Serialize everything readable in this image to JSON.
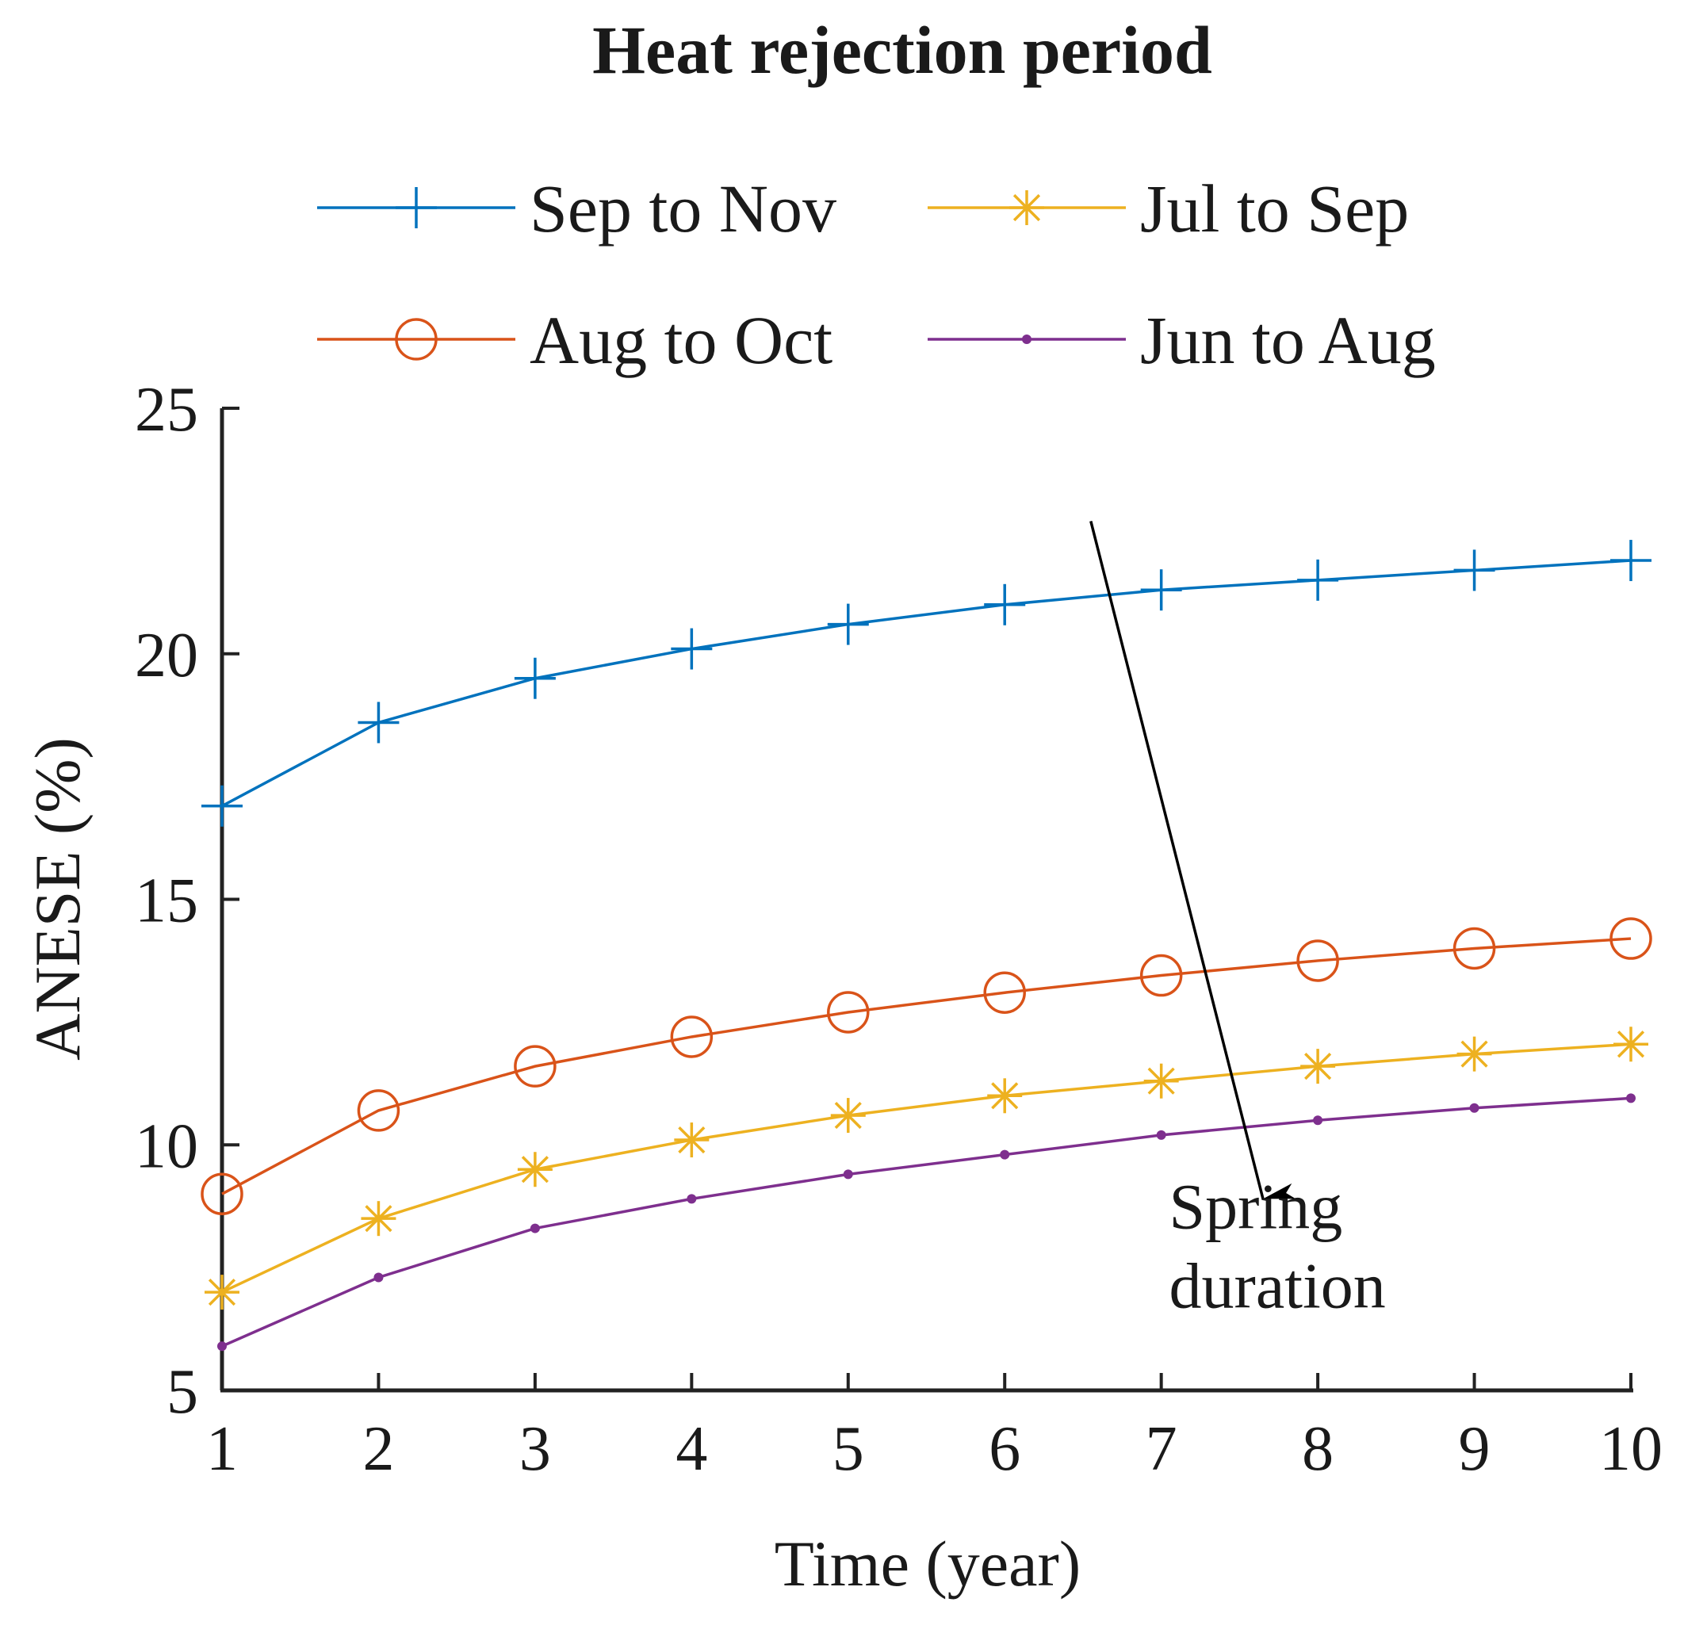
{
  "chart_data": {
    "type": "line",
    "title": "Heat rejection period",
    "xlabel": "Time (year)",
    "ylabel": "ANESE (%)",
    "x": [
      1,
      2,
      3,
      4,
      5,
      6,
      7,
      8,
      9,
      10
    ],
    "xlim": [
      1,
      10
    ],
    "ylim": [
      5,
      25
    ],
    "xticks": [
      1,
      2,
      3,
      4,
      5,
      6,
      7,
      8,
      9,
      10
    ],
    "yticks": [
      5,
      10,
      15,
      20,
      25
    ],
    "grid": false,
    "legend_position": "top",
    "series": [
      {
        "name": "Sep to Nov",
        "color": "#0072BD",
        "marker": "plus",
        "values": [
          16.9,
          18.6,
          19.5,
          20.1,
          20.6,
          21.0,
          21.3,
          21.5,
          21.7,
          21.9
        ]
      },
      {
        "name": "Jul to Sep",
        "color": "#EDB120",
        "marker": "asterisk",
        "values": [
          7.0,
          8.5,
          9.5,
          10.1,
          10.6,
          11.0,
          11.3,
          11.6,
          11.85,
          12.05
        ]
      },
      {
        "name": "Aug to Oct",
        "color": "#D95319",
        "marker": "circle",
        "values": [
          9.0,
          10.7,
          11.6,
          12.2,
          12.7,
          13.1,
          13.45,
          13.75,
          14.0,
          14.2
        ]
      },
      {
        "name": "Jun to Aug",
        "color": "#7E2F8E",
        "marker": "dot",
        "values": [
          5.9,
          7.3,
          8.3,
          8.9,
          9.4,
          9.8,
          10.2,
          10.5,
          10.75,
          10.95
        ]
      }
    ],
    "annotation": {
      "lines": [
        "Spring",
        "duration"
      ],
      "arrow_from": {
        "x": 6.55,
        "y": 22.7
      },
      "arrow_to": {
        "x": 7.65,
        "y": 8.9
      },
      "text_at": {
        "x": 7.05,
        "y": 8.3
      }
    }
  }
}
